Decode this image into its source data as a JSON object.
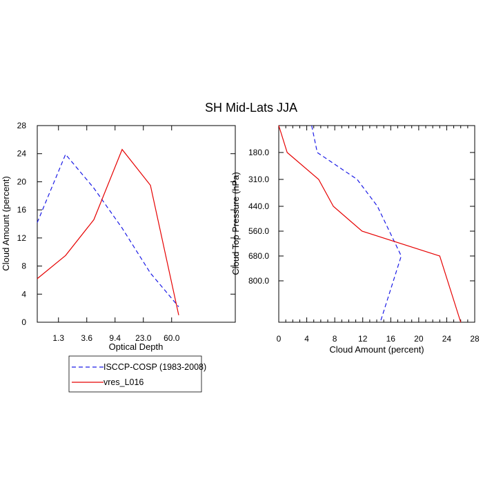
{
  "figure": {
    "title": "SH Mid-Lats JJA"
  },
  "legend": {
    "placement": "bottom-left",
    "entries": [
      {
        "name": "ISCCP-COSP (1983-2008)",
        "color": "#1a1ae6",
        "dash": "dashed"
      },
      {
        "name": "vres_L016",
        "color": "#e60000",
        "dash": "solid"
      }
    ]
  },
  "chart_data": [
    {
      "type": "line",
      "xlabel": "Optical Depth",
      "ylabel": "Cloud Amount (percent)",
      "xlim": [
        0,
        7
      ],
      "ylim": [
        0,
        28
      ],
      "x_ticks": [
        {
          "value": 0.75,
          "label": "1.3"
        },
        {
          "value": 1.75,
          "label": "3.6"
        },
        {
          "value": 2.75,
          "label": "9.4"
        },
        {
          "value": 3.75,
          "label": "23.0"
        },
        {
          "value": 4.75,
          "label": "60.0"
        }
      ],
      "y_ticks": [
        0,
        4,
        8,
        12,
        16,
        20,
        24,
        28
      ],
      "grid": false,
      "series": [
        {
          "name": "ISCCP-COSP (1983-2008)",
          "color": "#1a1ae6",
          "dash": "dashed",
          "x": [
            0,
            1.0,
            2.0,
            3.0,
            4.0,
            5.0
          ],
          "y": [
            14.2,
            23.9,
            19.1,
            13.4,
            7.0,
            2.2
          ]
        },
        {
          "name": "vres_L016",
          "color": "#e60000",
          "dash": "solid",
          "x": [
            0,
            1.0,
            2.0,
            3.0,
            4.0,
            5.0
          ],
          "y": [
            6.2,
            9.5,
            14.6,
            24.6,
            19.5,
            1.0
          ]
        }
      ]
    },
    {
      "type": "line",
      "xlabel": "Cloud Amount (percent)",
      "ylabel": "Cloud Top Pressure (hPa)",
      "xlim": [
        0,
        28
      ],
      "ylim": [
        50,
        1000
      ],
      "y_reversed": true,
      "x_ticks": [
        0,
        4,
        8,
        12,
        16,
        20,
        24,
        28
      ],
      "y_ticks": [
        {
          "value": 180,
          "label": "180.0"
        },
        {
          "value": 310,
          "label": "310.0"
        },
        {
          "value": 440,
          "label": "440.0"
        },
        {
          "value": 560,
          "label": "560.0"
        },
        {
          "value": 680,
          "label": "680.0"
        },
        {
          "value": 800,
          "label": "800.0"
        }
      ],
      "grid": false,
      "series": [
        {
          "name": "ISCCP-COSP (1983-2008)",
          "color": "#1a1ae6",
          "dash": "dashed",
          "x": [
            4.7,
            5.5,
            11.2,
            14.1,
            17.5,
            14.5
          ],
          "y": [
            50,
            180,
            310,
            440,
            680,
            1000
          ]
        },
        {
          "name": "vres_L016",
          "color": "#e60000",
          "dash": "solid",
          "x": [
            0,
            1.2,
            5.7,
            7.8,
            11.9,
            23.0,
            26.0
          ],
          "y": [
            50,
            180,
            310,
            440,
            560,
            680,
            1000
          ]
        }
      ]
    }
  ]
}
